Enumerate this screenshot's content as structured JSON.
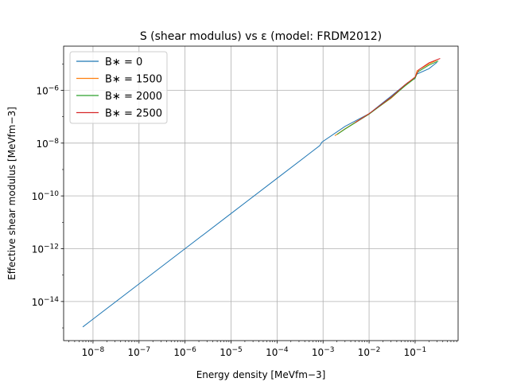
{
  "chart_data": {
    "type": "line",
    "title": "S (shear modulus) vs ε (model: FRDM2012)",
    "xlabel": "Energy density [MeVfm−3]",
    "ylabel": "Effective shear modulus [MeVfm−3]",
    "xscale": "log",
    "yscale": "log",
    "grid": true,
    "legend": "upper left",
    "xlim": [
      2.3e-09,
      0.86
    ],
    "ylim": [
      3.3e-16,
      4.7e-05
    ],
    "xticks": [
      {
        "value": 1e-08,
        "label": "10−8"
      },
      {
        "value": 1e-07,
        "label": "10−7"
      },
      {
        "value": 1e-06,
        "label": "10−6"
      },
      {
        "value": 1e-05,
        "label": "10−5"
      },
      {
        "value": 0.0001,
        "label": "10−4"
      },
      {
        "value": 0.001,
        "label": "10−3"
      },
      {
        "value": 0.01,
        "label": "10−2"
      },
      {
        "value": 0.1,
        "label": "10−1"
      }
    ],
    "yticks": [
      {
        "value": 1e-14,
        "label": "10−14"
      },
      {
        "value": 1e-12,
        "label": "10−12"
      },
      {
        "value": 1e-10,
        "label": "10−10"
      },
      {
        "value": 1e-08,
        "label": "10−8"
      },
      {
        "value": 1e-06,
        "label": "10−6"
      }
    ],
    "series": [
      {
        "name": "B∗ = 0",
        "color": "#1f77b4",
        "x": [
          6e-09,
          1e-08,
          1e-07,
          1e-06,
          1e-05,
          0.0001,
          0.0005,
          0.00085,
          0.00095,
          0.003,
          0.01,
          0.03,
          0.07,
          0.1,
          0.105,
          0.2,
          0.3
        ],
        "values": [
          1.09e-15,
          2.15e-15,
          4.64e-14,
          1e-12,
          2.15e-11,
          4.64e-10,
          3.97e-09,
          8.05e-09,
          1.1e-08,
          4.3e-08,
          1.3e-07,
          6e-07,
          2e-06,
          2.8e-06,
          4e-06,
          6.6e-06,
          1.15e-05
        ]
      },
      {
        "name": "B∗ = 1500",
        "color": "#ff7f0e",
        "x": [
          0.0018,
          0.003,
          0.01,
          0.03,
          0.06,
          0.1,
          0.11,
          0.2,
          0.3
        ],
        "values": [
          1.9e-08,
          3.5e-08,
          1.3e-07,
          5e-07,
          1.5e-06,
          3e-06,
          5.5e-06,
          1e-05,
          1.4e-05
        ]
      },
      {
        "name": "B∗ = 2000",
        "color": "#2ca02c",
        "x": [
          0.002,
          0.003,
          0.01,
          0.03,
          0.06,
          0.1,
          0.115,
          0.2,
          0.32
        ],
        "values": [
          2.1e-08,
          3.4e-08,
          1.25e-07,
          5.2e-07,
          1.45e-06,
          2.9e-06,
          5e-06,
          9e-06,
          1.3e-05
        ]
      },
      {
        "name": "B∗ = 2500",
        "color": "#d62728",
        "x": [
          0.005,
          0.01,
          0.03,
          0.06,
          0.1,
          0.12,
          0.2,
          0.35
        ],
        "values": [
          6e-08,
          1.3e-07,
          5.5e-07,
          1.6e-06,
          3.2e-06,
          6e-06,
          1.1e-05,
          1.6e-05
        ]
      }
    ]
  }
}
